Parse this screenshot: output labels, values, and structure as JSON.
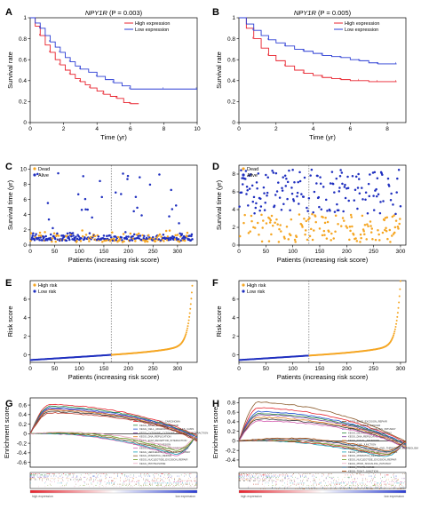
{
  "colors": {
    "high": "#e8212c",
    "low": "#2a3cd4",
    "dead": "#f5a623",
    "alive": "#1f2fbf",
    "highRisk": "#f5a623",
    "lowRisk": "#1f2fbf"
  },
  "chart_data": [
    {
      "panel": "A",
      "type": "line",
      "title_gene": "NPY1R",
      "title_stat": " (P = 0.003)",
      "xlabel": "Time (yr)",
      "ylabel": "Survival rate",
      "xlim": [
        0,
        10
      ],
      "ylim": [
        0,
        1
      ],
      "xticks": [
        0,
        2,
        4,
        6,
        8,
        10
      ],
      "yticks": [
        0,
        0.2,
        0.4,
        0.6,
        0.8,
        1.0
      ],
      "legend_position": "top-right",
      "series": [
        {
          "name": "High expression",
          "color": "#e8212c",
          "x": [
            0,
            0.3,
            0.6,
            0.9,
            1.2,
            1.5,
            1.8,
            2.1,
            2.4,
            2.7,
            3.0,
            3.3,
            3.6,
            4.0,
            4.4,
            4.8,
            5.2,
            5.6,
            6.0,
            6.5
          ],
          "y": [
            1.0,
            0.92,
            0.83,
            0.74,
            0.67,
            0.6,
            0.55,
            0.5,
            0.46,
            0.42,
            0.39,
            0.36,
            0.33,
            0.3,
            0.27,
            0.25,
            0.23,
            0.19,
            0.18,
            0.18
          ]
        },
        {
          "name": "Low expression",
          "color": "#2a3cd4",
          "x": [
            0,
            0.3,
            0.6,
            0.9,
            1.2,
            1.5,
            1.8,
            2.1,
            2.4,
            2.7,
            3.0,
            3.5,
            4.0,
            4.5,
            5.0,
            5.5,
            6.0,
            7.0,
            8.0,
            9.0,
            10.0
          ],
          "y": [
            1.0,
            0.95,
            0.9,
            0.83,
            0.77,
            0.72,
            0.67,
            0.62,
            0.58,
            0.54,
            0.51,
            0.48,
            0.44,
            0.41,
            0.38,
            0.35,
            0.32,
            0.32,
            0.32,
            0.32,
            0.32
          ]
        }
      ]
    },
    {
      "panel": "B",
      "type": "line",
      "title_gene": "NPY1R",
      "title_stat": " (P = 0.005)",
      "xlabel": "Time (yr)",
      "ylabel": "Survival rate",
      "xlim": [
        0,
        9
      ],
      "ylim": [
        0,
        1
      ],
      "xticks": [
        0,
        2,
        4,
        6,
        8
      ],
      "yticks": [
        0,
        0.2,
        0.4,
        0.6,
        0.8,
        1.0
      ],
      "legend_position": "top-right",
      "series": [
        {
          "name": "High expression",
          "color": "#e8212c",
          "x": [
            0,
            0.4,
            0.8,
            1.2,
            1.6,
            2.0,
            2.5,
            3.0,
            3.5,
            4.0,
            4.5,
            5.0,
            5.5,
            6.0,
            6.5,
            7.0,
            7.5,
            8.0,
            8.5
          ],
          "y": [
            1.0,
            0.9,
            0.8,
            0.71,
            0.64,
            0.59,
            0.54,
            0.5,
            0.47,
            0.45,
            0.43,
            0.42,
            0.41,
            0.4,
            0.4,
            0.39,
            0.39,
            0.39,
            0.39
          ]
        },
        {
          "name": "Low expression",
          "color": "#2a3cd4",
          "x": [
            0,
            0.4,
            0.8,
            1.2,
            1.6,
            2.0,
            2.5,
            3.0,
            3.5,
            4.0,
            4.5,
            5.0,
            5.5,
            6.0,
            6.5,
            7.0,
            7.5,
            8.0,
            8.5
          ],
          "y": [
            1.0,
            0.94,
            0.88,
            0.83,
            0.79,
            0.76,
            0.73,
            0.7,
            0.68,
            0.66,
            0.64,
            0.63,
            0.62,
            0.6,
            0.59,
            0.57,
            0.56,
            0.56,
            0.56
          ]
        }
      ]
    },
    {
      "panel": "C",
      "type": "scatter",
      "xlabel": "Patients (increasing risk score)",
      "ylabel": "Survival time (yr)",
      "xlim": [
        0,
        340
      ],
      "ylim": [
        0,
        10.5
      ],
      "xticks": [
        0,
        50,
        100,
        150,
        200,
        250,
        300
      ],
      "yticks": [
        0,
        2,
        4,
        6,
        8,
        10
      ],
      "n": 330,
      "cutoff": 165,
      "legend": [
        "Dead",
        "Alive"
      ],
      "legend_position": "top-left"
    },
    {
      "panel": "D",
      "type": "scatter",
      "xlabel": "Patients (increasing risk score)",
      "ylabel": "Survival time (yr)",
      "xlim": [
        0,
        310
      ],
      "ylim": [
        0,
        9
      ],
      "xticks": [
        0,
        50,
        100,
        150,
        200,
        250,
        300
      ],
      "yticks": [
        0,
        2,
        4,
        6,
        8
      ],
      "n": 300,
      "cutoff": 130,
      "legend": [
        "Dead",
        "Alive"
      ],
      "legend_position": "top-left"
    },
    {
      "panel": "E",
      "type": "scatter",
      "xlabel": "Patients (increasing risk score)",
      "ylabel": "Risk score",
      "xlim": [
        0,
        340
      ],
      "ylim": [
        -0.8,
        8
      ],
      "xticks": [
        0,
        50,
        100,
        150,
        200,
        250,
        300
      ],
      "yticks": [
        0,
        2,
        4,
        6
      ],
      "n": 330,
      "cutoff": 165,
      "legend": [
        "High risk",
        "Low risk"
      ],
      "legend_position": "top-left"
    },
    {
      "panel": "F",
      "type": "scatter",
      "xlabel": "Patients (increasing risk score)",
      "ylabel": "Risk score",
      "xlim": [
        0,
        310
      ],
      "ylim": [
        -0.8,
        8
      ],
      "xticks": [
        0,
        50,
        100,
        150,
        200,
        250,
        300
      ],
      "yticks": [
        0,
        2,
        4,
        6
      ],
      "n": 300,
      "cutoff": 130,
      "legend": [
        "High risk",
        "Low risk"
      ],
      "legend_position": "top-left"
    },
    {
      "panel": "G",
      "type": "line",
      "ylabel": "Enrichment score",
      "yticks": [
        -0.6,
        -0.4,
        -0.2,
        0.0,
        0.2,
        0.4,
        0.6
      ],
      "ylim": [
        -0.7,
        0.75
      ],
      "bottom_left": "high expression",
      "bottom_right": "low expression",
      "legend_position": "middle-right",
      "series": [
        {
          "name": "KEGG_BASAL_CELL_CARCINOMA",
          "color": "#e8212c",
          "peak": 0.62,
          "trough": -0.05
        },
        {
          "name": "KEGG_BASE_EXCISION_REPAIR",
          "color": "#2b8a3e",
          "peak": 0.58,
          "trough": -0.08
        },
        {
          "name": "KEGG_CELL_ADHESION_MOLECULES_CAMS",
          "color": "#1f4fd1",
          "peak": 0.55,
          "trough": -0.1
        },
        {
          "name": "KEGG_CYTOKINE_CYTOKINE_RECEPTOR_INTERACTION",
          "color": "#7b3fa0",
          "peak": 0.52,
          "trough": -0.12
        },
        {
          "name": "KEGG_DNA_REPLICATION",
          "color": "#e07b1a",
          "peak": 0.5,
          "trough": -0.15
        },
        {
          "name": "KEGG_ECM_RECEPTOR_INTERACTION",
          "color": "#3a3a3a",
          "peak": 0.47,
          "trough": -0.18
        },
        {
          "name": "KEGG_FOCAL_ADHESION",
          "color": "#c0392b",
          "peak": 0.44,
          "trough": -0.2
        },
        {
          "name": "KEGG_HOMOLOGOUS_RECOMBINATION",
          "color": "#d35db0",
          "peak": 0.05,
          "trough": -0.62
        },
        {
          "name": "KEGG_HEDGEHOG_SIGNALING_PATHWAY",
          "color": "#16a2b8",
          "peak": 0.06,
          "trough": -0.58
        },
        {
          "name": "KEGG_MISMATCH_REPAIR",
          "color": "#8b5a2b",
          "peak": 0.08,
          "trough": -0.55
        },
        {
          "name": "KEGG_NUCLEOTIDE_EXCISION_REPAIR",
          "color": "#6c9a1f",
          "peak": 0.1,
          "trough": -0.5
        },
        {
          "name": "KEGG_PROTEASOME",
          "color": "#e8a8c0",
          "peak": 0.12,
          "trough": -0.45
        }
      ]
    },
    {
      "panel": "H",
      "type": "line",
      "ylabel": "Enrichment score",
      "yticks": [
        -0.4,
        -0.2,
        0.0,
        0.2,
        0.4,
        0.6,
        0.8
      ],
      "ylim": [
        -0.55,
        0.9
      ],
      "bottom_left": "high expression",
      "bottom_right": "low expression",
      "legend_position": "middle-right",
      "series": [
        {
          "name": "KEGG_BASE_EXCISION_REPAIR",
          "color": "#8b5a2b",
          "peak": 0.82,
          "trough": -0.02
        },
        {
          "name": "KEGG_BLADDER_CANCER",
          "color": "#e8212c",
          "peak": 0.7,
          "trough": -0.05
        },
        {
          "name": "KEGG_CALCIUM_SIGNALING_PATHWAY",
          "color": "#1f4fd1",
          "peak": 0.62,
          "trough": -0.08
        },
        {
          "name": "KEGG_DILATED_CARDIOMYOPATHY",
          "color": "#2b8a3e",
          "peak": 0.58,
          "trough": -0.1
        },
        {
          "name": "KEGG_DNA_REPLICATION",
          "color": "#7b3fa0",
          "peak": 0.55,
          "trough": -0.12
        },
        {
          "name": "KEGG_FOCAL_ADHESION",
          "color": "#e07b1a",
          "peak": 0.5,
          "trough": -0.15
        },
        {
          "name": "KEGG_GAP_JUNCTION",
          "color": "#3a3a3a",
          "peak": 0.46,
          "trough": -0.18
        },
        {
          "name": "KEGG_GLYCINE_SERINE_AND_THREONINE_METABOLISM",
          "color": "#d35db0",
          "peak": 0.42,
          "trough": -0.2
        },
        {
          "name": "KEGG_HOMOLOGOUS_RECOMBINATION",
          "color": "#16a2b8",
          "peak": 0.05,
          "trough": -0.45
        },
        {
          "name": "KEGG_MISMATCH_REPAIR",
          "color": "#c0392b",
          "peak": 0.06,
          "trough": -0.42
        },
        {
          "name": "KEGG_NUCLEOTIDE_EXCISION_REPAIR",
          "color": "#6c9a1f",
          "peak": 0.08,
          "trough": -0.4
        },
        {
          "name": "KEGG_PPAR_SIGNALING_PATHWAY",
          "color": "#e8a8c0",
          "peak": 0.1,
          "trough": -0.38
        },
        {
          "name": "KEGG_PROTEASOME",
          "color": "#1a5276",
          "peak": 0.12,
          "trough": -0.35
        },
        {
          "name": "KEGG_TIGHT_JUNCTION",
          "color": "#a04000",
          "peak": 0.14,
          "trough": -0.32
        }
      ]
    }
  ]
}
